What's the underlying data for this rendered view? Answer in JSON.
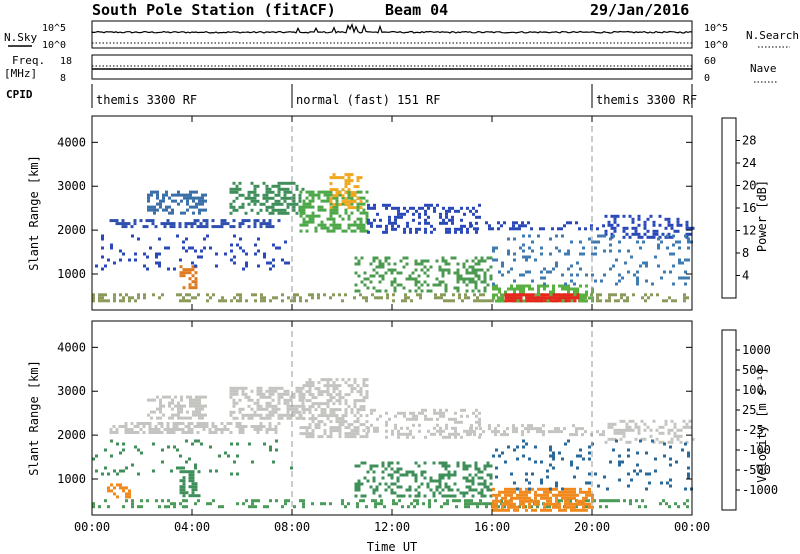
{
  "header": {
    "station": "South Pole Station (fitACF)",
    "beam": "Beam 04",
    "date": "29/Jan/2016"
  },
  "status_panels": {
    "nsky_label": "N.Sky",
    "nsearch_label": "N.Search",
    "noise_ticks": [
      "10^5",
      "10^0"
    ],
    "freq_label": "Freq.",
    "freq_unit": "[MHz]",
    "freq_ticks": [
      "18",
      "8"
    ],
    "nave_label": "Nave",
    "nave_ticks": [
      "60",
      "0"
    ],
    "cpid_label": "CPID",
    "modes": [
      {
        "name": "themis 3300 RF",
        "start_hour": 0,
        "end_hour": 8
      },
      {
        "name": "normal (fast) 151 RF",
        "start_hour": 8,
        "end_hour": 20
      },
      {
        "name": "themis 3300 RF",
        "start_hour": 20,
        "end_hour": 24
      }
    ]
  },
  "chart_data": [
    {
      "type": "heatmap",
      "name": "power",
      "ylabel": "Slant Range [km]",
      "y_ticks": [
        1000,
        2000,
        3000,
        4000
      ],
      "ylim": [
        180,
        4600
      ],
      "xlim": [
        0,
        24
      ],
      "x_ticks_hours": [
        0,
        4,
        8,
        12,
        16,
        20,
        24
      ],
      "colorbar": {
        "label": "Power [dB]",
        "ticks": [
          "4",
          "8",
          "12",
          "16",
          "20",
          "24",
          "28"
        ],
        "colors": [
          "#0a18e6",
          "#2550c8",
          "#3a7a9a",
          "#3f8f5a",
          "#5cb83a",
          "#c8c83a",
          "#f2a81c",
          "#f07818",
          "#e8361e",
          "#cc1010"
        ]
      },
      "regions": [
        {
          "t0": 0.0,
          "t1": 24.0,
          "r0": 420,
          "r1": 560,
          "color": "#8a9a5a",
          "density": 0.35
        },
        {
          "t0": 0.7,
          "t1": 7.5,
          "r0": 2050,
          "r1": 2250,
          "color": "#2f4fb0",
          "density": 0.5
        },
        {
          "t0": 2.2,
          "t1": 4.5,
          "r0": 2400,
          "r1": 2900,
          "color": "#3a6fa8",
          "density": 0.45
        },
        {
          "t0": 3.5,
          "t1": 4.2,
          "r0": 700,
          "r1": 1200,
          "color": "#e07a20",
          "density": 0.5
        },
        {
          "t0": 5.5,
          "t1": 8.5,
          "r0": 2400,
          "r1": 3100,
          "color": "#3f8f5a",
          "density": 0.45
        },
        {
          "t0": 8.3,
          "t1": 11.0,
          "r0": 2000,
          "r1": 2900,
          "color": "#4ea84a",
          "density": 0.5
        },
        {
          "t0": 9.5,
          "t1": 10.8,
          "r0": 2500,
          "r1": 3300,
          "color": "#f0a820",
          "density": 0.45
        },
        {
          "t0": 11.0,
          "t1": 15.5,
          "r0": 1950,
          "r1": 2600,
          "color": "#2a48b8",
          "density": 0.35
        },
        {
          "t0": 15.0,
          "t1": 20.5,
          "r0": 2000,
          "r1": 2200,
          "color": "#2a48b8",
          "density": 0.35
        },
        {
          "t0": 10.5,
          "t1": 16.0,
          "r0": 600,
          "r1": 1400,
          "color": "#4c9a52",
          "density": 0.35
        },
        {
          "t0": 16.0,
          "t1": 20.0,
          "r0": 380,
          "r1": 760,
          "color": "#58b040",
          "density": 0.55
        },
        {
          "t0": 16.5,
          "t1": 19.5,
          "r0": 420,
          "r1": 560,
          "color": "#e8261c",
          "density": 0.85
        },
        {
          "t0": 20.5,
          "t1": 24.0,
          "r0": 1850,
          "r1": 2350,
          "color": "#2a48b8",
          "density": 0.35
        },
        {
          "t0": 0.0,
          "t1": 8.0,
          "r0": 1100,
          "r1": 1900,
          "color": "#2a48b8",
          "density": 0.1
        },
        {
          "t0": 16.0,
          "t1": 24.0,
          "r0": 800,
          "r1": 1900,
          "color": "#3f7ab0",
          "density": 0.12
        }
      ]
    },
    {
      "type": "heatmap",
      "name": "velocity",
      "xlabel": "Time UT",
      "ylabel": "Slant Range [km]",
      "y_ticks": [
        1000,
        2000,
        3000,
        4000
      ],
      "ylim": [
        180,
        4600
      ],
      "xlim": [
        0,
        24
      ],
      "x_ticks": [
        "00:00",
        "04:00",
        "08:00",
        "12:00",
        "16:00",
        "20:00",
        "00:00"
      ],
      "colorbar": {
        "label": "Velocity [m s⁻¹]",
        "ticks": [
          "1000",
          "500",
          "100",
          "25",
          "-25",
          "-100",
          "-500",
          "-1000"
        ],
        "colors": [
          "#1a2eb8",
          "#2a6a9a",
          "#3f8f5a",
          "#5cc040",
          "#c4c4c0",
          "#f0c090",
          "#f08a1e",
          "#f05a10",
          "#e81c10"
        ]
      },
      "regions": [
        {
          "t0": 0.0,
          "t1": 24.0,
          "r0": 400,
          "r1": 540,
          "color": "#4a9a58",
          "density": 0.3
        },
        {
          "t0": 0.7,
          "t1": 7.5,
          "r0": 2050,
          "r1": 2300,
          "color": "#c4c4c0",
          "density": 0.55
        },
        {
          "t0": 2.2,
          "t1": 4.5,
          "r0": 2400,
          "r1": 2900,
          "color": "#c4c4c0",
          "density": 0.45
        },
        {
          "t0": 3.5,
          "t1": 4.3,
          "r0": 600,
          "r1": 1200,
          "color": "#3f8f5a",
          "density": 0.5
        },
        {
          "t0": 5.5,
          "t1": 8.5,
          "r0": 2400,
          "r1": 3100,
          "color": "#c4c4c0",
          "density": 0.5
        },
        {
          "t0": 8.3,
          "t1": 11.0,
          "r0": 2000,
          "r1": 3300,
          "color": "#c4c4c0",
          "density": 0.5
        },
        {
          "t0": 11.0,
          "t1": 15.5,
          "r0": 1950,
          "r1": 2600,
          "color": "#c4c4c0",
          "density": 0.35
        },
        {
          "t0": 15.0,
          "t1": 20.5,
          "r0": 2000,
          "r1": 2250,
          "color": "#c4c4c0",
          "density": 0.35
        },
        {
          "t0": 10.5,
          "t1": 16.0,
          "r0": 600,
          "r1": 1400,
          "color": "#3f8f5a",
          "density": 0.35
        },
        {
          "t0": 16.0,
          "t1": 20.0,
          "r0": 300,
          "r1": 800,
          "color": "#f08a1e",
          "density": 0.7
        },
        {
          "t0": 0.6,
          "t1": 1.5,
          "r0": 600,
          "r1": 900,
          "color": "#f08a1e",
          "density": 0.35
        },
        {
          "t0": 20.5,
          "t1": 24.0,
          "r0": 1850,
          "r1": 2350,
          "color": "#c4c4c0",
          "density": 0.35
        },
        {
          "t0": 0.0,
          "t1": 8.0,
          "r0": 1100,
          "r1": 1900,
          "color": "#3f8f5a",
          "density": 0.08
        },
        {
          "t0": 16.0,
          "t1": 24.0,
          "r0": 800,
          "r1": 1900,
          "color": "#2a6a9a",
          "density": 0.1
        }
      ]
    }
  ]
}
